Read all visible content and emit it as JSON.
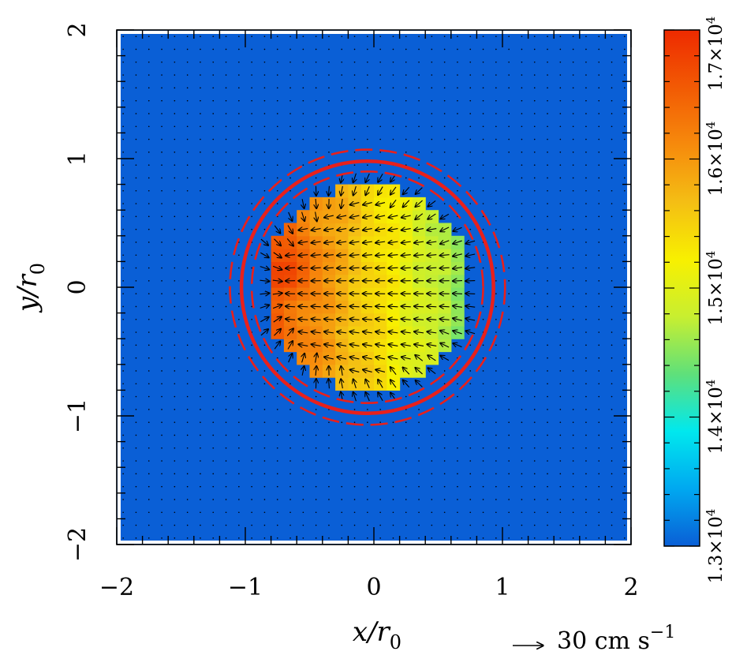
{
  "chart_data": {
    "type": "heatmap",
    "x": {
      "label": "x/r",
      "label_sub": "0",
      "range": [
        -2,
        2
      ],
      "ticks": [
        -2,
        -1,
        0,
        1,
        2
      ],
      "tick_labels": [
        "−2",
        "−1",
        "0",
        "1",
        "2"
      ]
    },
    "y": {
      "label": "y/r",
      "label_sub": "0",
      "range": [
        -2,
        2
      ],
      "ticks": [
        -2,
        -1,
        0,
        1,
        2
      ],
      "tick_labels": [
        "−2",
        "−1",
        "0",
        "1",
        "2"
      ]
    },
    "colorbar": {
      "range": [
        13000,
        17000
      ],
      "ticks": [
        13000,
        14000,
        15000,
        16000,
        17000
      ],
      "tick_labels": [
        {
          "mantissa": "1.3",
          "base": "×10",
          "exp": "4"
        },
        {
          "mantissa": "1.4",
          "base": "×10",
          "exp": "4"
        },
        {
          "mantissa": "1.5",
          "base": "×10",
          "exp": "4"
        },
        {
          "mantissa": "1.6",
          "base": "×10",
          "exp": "4"
        },
        {
          "mantissa": "1.7",
          "base": "×10",
          "exp": "4"
        }
      ],
      "colors": [
        "#0a5fd6",
        "#00a8f0",
        "#00e8ee",
        "#5fe07a",
        "#c8ef30",
        "#f8f000",
        "#f4be14",
        "#f68a0c",
        "#f25a04",
        "#ee2a00"
      ]
    },
    "field": {
      "background_value": 13000,
      "circle_center": [
        -0.05,
        0.0
      ],
      "circle_radius": 0.8,
      "max_value": 16600,
      "max_at": [
        -0.6,
        0.15
      ],
      "min_inside_value": 14400
    },
    "contours": [
      {
        "style": "solid",
        "center": [
          -0.05,
          0.0
        ],
        "radius": 0.98,
        "color": "#e8201c"
      },
      {
        "style": "dashed",
        "center": [
          -0.05,
          0.0
        ],
        "radius": 0.9,
        "color": "#e8201c"
      },
      {
        "style": "dashed",
        "center": [
          -0.05,
          0.0
        ],
        "radius": 1.07,
        "color": "#e8201c"
      }
    ],
    "velocity": {
      "direction": "leftward inside the circle, converging along the rim",
      "scale_value": 30,
      "scale_label": "30 cm s",
      "scale_exp": "−1"
    }
  }
}
